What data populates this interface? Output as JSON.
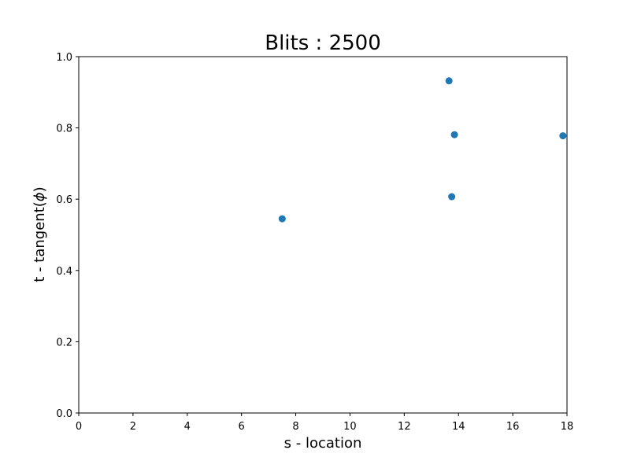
{
  "chart_data": {
    "type": "scatter",
    "title": "Blits : 2500",
    "xlabel": "s - location",
    "ylabel": "t - tangent(",
    "ylabel_symbol": "ϕ",
    "ylabel_suffix": ")",
    "xlim": [
      0,
      18
    ],
    "ylim": [
      0,
      1
    ],
    "xticks": [
      "0",
      "2",
      "4",
      "6",
      "8",
      "10",
      "12",
      "14",
      "16",
      "18"
    ],
    "yticks": [
      "0.0",
      "0.2",
      "0.4",
      "0.6",
      "0.8",
      "1.0"
    ],
    "grid": false,
    "marker_color": "#1f77b4",
    "series": [
      {
        "x": [
          7.5,
          13.65,
          13.85,
          13.75,
          17.85
        ],
        "y": [
          0.545,
          0.932,
          0.781,
          0.607,
          0.778
        ]
      }
    ]
  }
}
